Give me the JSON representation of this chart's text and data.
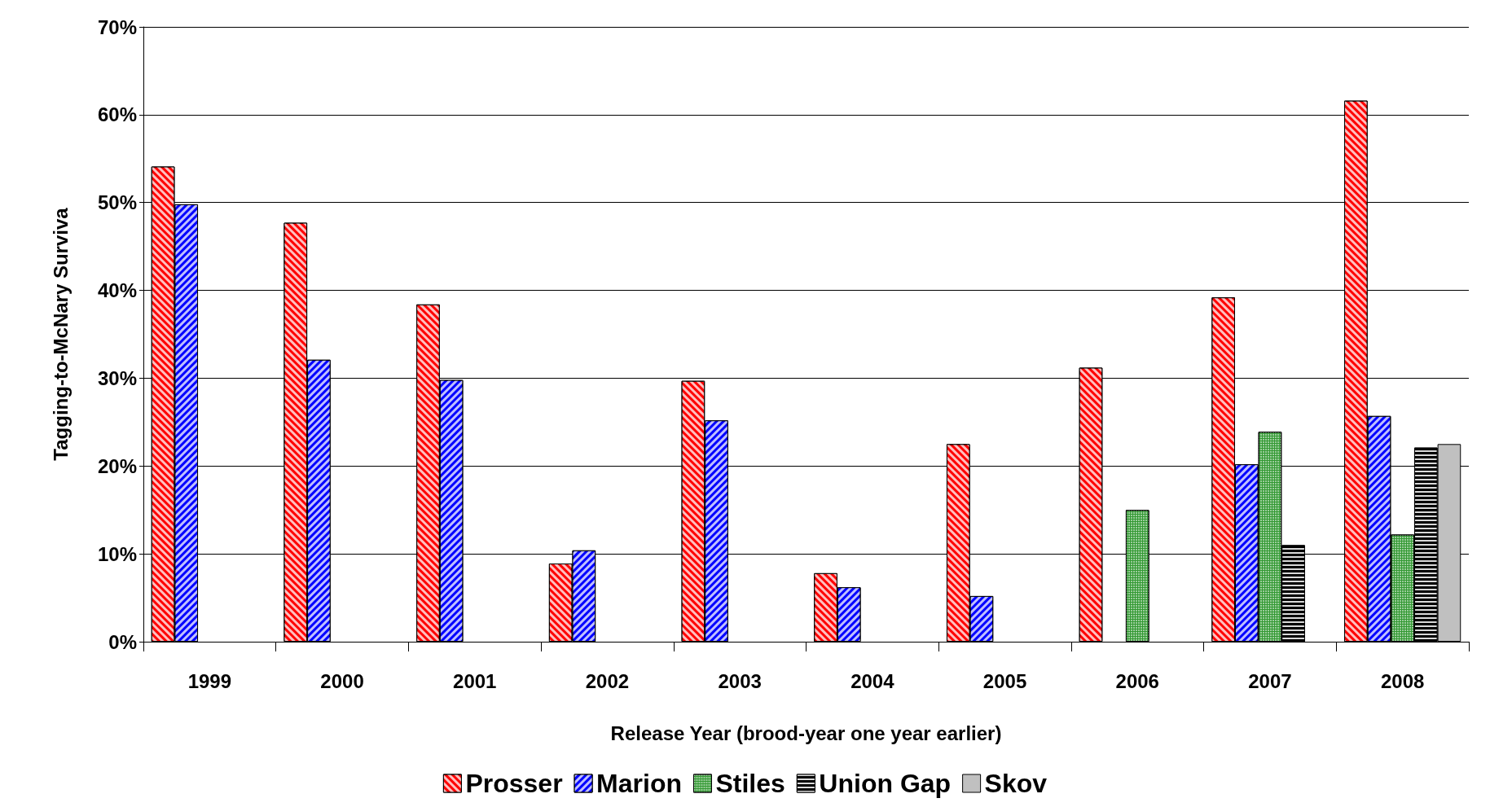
{
  "chart_data": {
    "type": "bar",
    "xlabel": "Release Year (brood-year one year earlier)",
    "ylabel": "Tagging-to-McNary Surviva",
    "categories": [
      "1999",
      "2000",
      "2001",
      "2002",
      "2003",
      "2004",
      "2005",
      "2006",
      "2007",
      "2008"
    ],
    "series": [
      {
        "name": "Prosser",
        "color": "#ff0000",
        "values": [
          54.1,
          47.7,
          38.4,
          8.9,
          29.7,
          7.8,
          22.5,
          31.2,
          39.2,
          61.6
        ]
      },
      {
        "name": "Marion",
        "color": "#0000ff",
        "values": [
          49.8,
          32.1,
          29.8,
          10.4,
          25.2,
          6.2,
          5.2,
          null,
          20.2,
          25.7
        ]
      },
      {
        "name": "Stiles",
        "color": "#339933",
        "values": [
          null,
          null,
          null,
          null,
          null,
          null,
          null,
          15.0,
          23.9,
          12.2
        ]
      },
      {
        "name": "Union Gap",
        "color": "#000000",
        "values": [
          null,
          null,
          null,
          null,
          null,
          null,
          null,
          null,
          11.0,
          22.1
        ]
      },
      {
        "name": "Skov",
        "color": "#c0c0c0",
        "values": [
          null,
          null,
          null,
          null,
          null,
          null,
          null,
          null,
          null,
          22.5
        ]
      }
    ],
    "ylim": [
      0,
      70
    ],
    "yticks": [
      {
        "value": 0,
        "label": "0%"
      },
      {
        "value": 10,
        "label": "10%"
      },
      {
        "value": 20,
        "label": "20%"
      },
      {
        "value": 30,
        "label": "30%"
      },
      {
        "value": 40,
        "label": "40%"
      },
      {
        "value": 50,
        "label": "50%"
      },
      {
        "value": 60,
        "label": "60%"
      },
      {
        "value": 70,
        "label": "70%"
      }
    ],
    "grid": "y",
    "legend": "bottom"
  }
}
